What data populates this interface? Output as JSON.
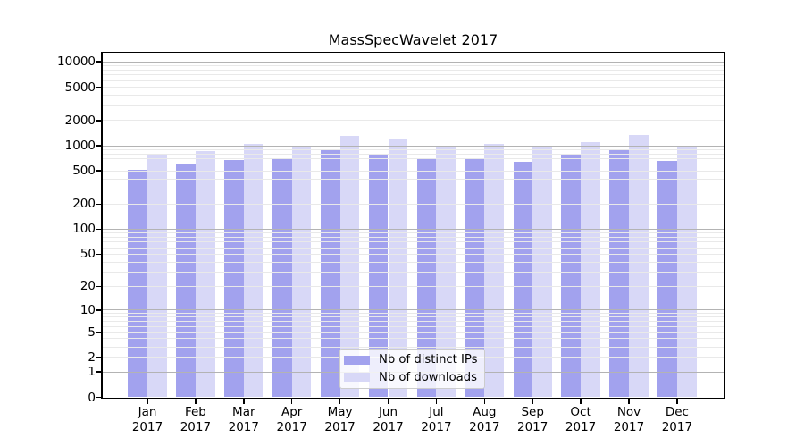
{
  "chart_data": {
    "type": "bar",
    "title": "MassSpecWavelet 2017",
    "year_label": "2017",
    "categories": [
      "Jan",
      "Feb",
      "Mar",
      "Apr",
      "May",
      "Jun",
      "Jul",
      "Aug",
      "Sep",
      "Oct",
      "Nov",
      "Dec"
    ],
    "series": [
      {
        "name": "Nb of distinct IPs",
        "key": "distinct-ips",
        "color": "#a2a2ee",
        "values": [
          520,
          605,
          675,
          695,
          880,
          795,
          685,
          715,
          650,
          785,
          895,
          655
        ]
      },
      {
        "name": "Nb of downloads",
        "key": "downloads",
        "color": "#d8d8f7",
        "values": [
          775,
          855,
          1060,
          980,
          1320,
          1200,
          985,
          1050,
          980,
          1115,
          1360,
          980
        ]
      }
    ],
    "yscale": "log1p",
    "yticks": [
      0,
      1,
      2,
      5,
      10,
      20,
      50,
      100,
      200,
      500,
      1000,
      2000,
      5000,
      10000
    ],
    "ylim": [
      0,
      12700
    ],
    "xlabel": "",
    "ylabel": "",
    "grid": true,
    "legend_position": "lower center"
  },
  "colors": {
    "bar_distinct_ips": "#a2a2ee",
    "bar_downloads": "#d8d8f7",
    "grid_major": "#b3b3b3",
    "grid_minor": "#e9e9e9",
    "axis": "#000000",
    "legend_border": "#cccccc",
    "background": "#ffffff"
  }
}
